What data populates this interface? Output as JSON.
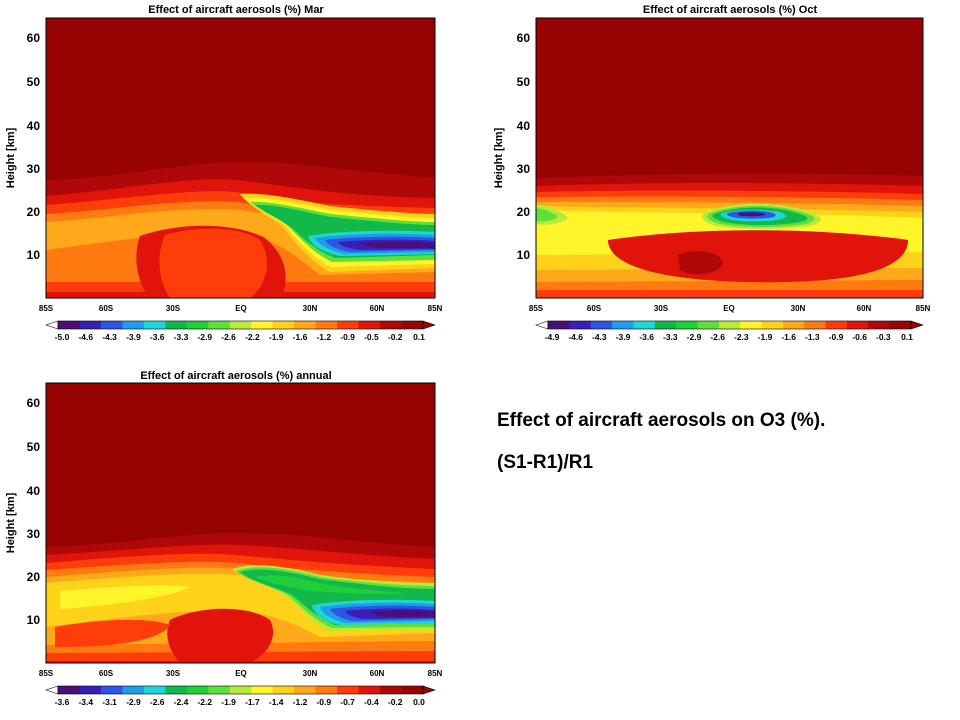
{
  "caption": {
    "line1": "Effect of aircraft aerosols on O3 (%).",
    "line2": "(S1-R1)/R1"
  },
  "colors": {
    "scale": [
      "#4b0f7a",
      "#3a1fb5",
      "#2d55e6",
      "#1f9de8",
      "#1fd6d6",
      "#12b84a",
      "#1fcf3a",
      "#5ee03a",
      "#b8ea3a",
      "#fff52a",
      "#ffd21a",
      "#ffa81a",
      "#ff7a10",
      "#ff3d0a",
      "#e0140a",
      "#b00808",
      "#970202"
    ],
    "background": "#970202"
  },
  "chart_data": [
    {
      "type": "heatmap",
      "title": "Effect of aircraft aerosols (%) Mar",
      "ylabel": "Height [km]",
      "x_ticks": [
        "85S",
        "60S",
        "30S",
        "EQ",
        "30N",
        "60N",
        "85N"
      ],
      "y_ticks": [
        "10",
        "20",
        "30",
        "40",
        "50",
        "60"
      ],
      "ylim": [
        0,
        65
      ],
      "colorbar_ticks": [
        "-5.0",
        "-4.6",
        "-4.3",
        "-3.9",
        "-3.6",
        "-3.3",
        "-2.9",
        "-2.6",
        "-2.2",
        "-1.9",
        "-1.6",
        "-1.2",
        "-0.9",
        "-0.5",
        "-0.2",
        "0.1"
      ],
      "features": [
        {
          "lat": 45,
          "z": 11,
          "value": -5.0
        },
        {
          "lat": 25,
          "z": 20,
          "value": -2.2
        },
        {
          "lat": -30,
          "z": 15,
          "value": -0.5
        }
      ],
      "background_value": 0.1
    },
    {
      "type": "heatmap",
      "title": "Effect of aircraft aerosols (%) Oct",
      "ylabel": "Height [km]",
      "x_ticks": [
        "85S",
        "60S",
        "30S",
        "EQ",
        "30N",
        "60N",
        "85N"
      ],
      "y_ticks": [
        "10",
        "20",
        "30",
        "40",
        "50",
        "60"
      ],
      "ylim": [
        0,
        65
      ],
      "colorbar_ticks": [
        "-4.9",
        "-4.6",
        "-4.3",
        "-3.9",
        "-3.6",
        "-3.3",
        "-2.9",
        "-2.6",
        "-2.3",
        "-1.9",
        "-1.6",
        "-1.3",
        "-0.9",
        "-0.6",
        "-0.3",
        "0.1"
      ],
      "features": [
        {
          "lat": 10,
          "z": 19,
          "value": -4.9
        },
        {
          "lat": -80,
          "z": 19,
          "value": -1.6
        }
      ],
      "background_value": 0.1
    },
    {
      "type": "heatmap",
      "title": "Effect of aircraft aerosols (%) annual",
      "ylabel": "Height [km]",
      "x_ticks": [
        "85S",
        "60S",
        "30S",
        "EQ",
        "30N",
        "60N",
        "85N"
      ],
      "y_ticks": [
        "10",
        "20",
        "30",
        "40",
        "50",
        "60"
      ],
      "ylim": [
        0,
        65
      ],
      "colorbar_ticks": [
        "-3.6",
        "-3.4",
        "-3.1",
        "-2.9",
        "-2.6",
        "-2.4",
        "-2.2",
        "-1.9",
        "-1.7",
        "-1.4",
        "-1.2",
        "-0.9",
        "-0.7",
        "-0.4",
        "-0.2",
        "0.0"
      ],
      "features": [
        {
          "lat": 60,
          "z": 11,
          "value": -3.6
        },
        {
          "lat": 25,
          "z": 20,
          "value": -1.9
        },
        {
          "lat": -40,
          "z": 16,
          "value": -1.2
        }
      ],
      "background_value": 0.0
    }
  ]
}
